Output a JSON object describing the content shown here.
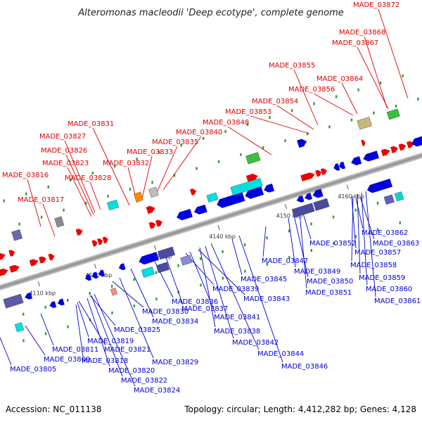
{
  "title": "Alteromonas macleodii 'Deep ecotype', complete genome",
  "footer": {
    "accession": "Accession: NC_011138",
    "summary": "Topology: circular; Length: 4,412,282 bp; Genes: 4,128"
  },
  "colors": {
    "forward_label": "#e00000",
    "reverse_label": "#0000d0",
    "backbone": "#999999"
  },
  "axis_ticks": [
    "4110 kbp",
    "4120 kbp",
    "4130 kbp",
    "4140 kbp",
    "4150 kbp",
    "4160 kbp"
  ],
  "forward_genes": [
    "MADE_03816",
    "MADE_03817",
    "MADE_03823",
    "MADE_03826",
    "MADE_03827",
    "MADE_03828",
    "MADE_03831",
    "MADE_03832",
    "MADE_03833",
    "MADE_03835",
    "MADE_03840",
    "MADE_03848",
    "MADE_03853",
    "MADE_03854",
    "MADE_03855",
    "MADE_03856",
    "MADE_03864",
    "MADE_03867",
    "MADE_03868",
    "MADE_03872"
  ],
  "reverse_genes": [
    "MADE_03805",
    "MADE_03809",
    "MADE_03811",
    "MADE_03818",
    "MADE_03819",
    "MADE_03820",
    "MADE_03821",
    "MADE_03822",
    "MADE_03824",
    "MADE_03825",
    "MADE_03829",
    "MADE_03830",
    "MADE_03834",
    "MADE_03836",
    "MADE_03837",
    "MADE_03838",
    "MADE_03839",
    "MADE_03841",
    "MADE_03842",
    "MADE_03843",
    "MADE_03844",
    "MADE_03845",
    "MADE_03846",
    "MADE_03847",
    "MADE_03849",
    "MADE_03850",
    "MADE_03851",
    "MADE_03852",
    "MADE_03857",
    "MADE_03858",
    "MADE_03859",
    "MADE_03860",
    "MADE_03861",
    "MADE_03862",
    "MADE_03863"
  ]
}
